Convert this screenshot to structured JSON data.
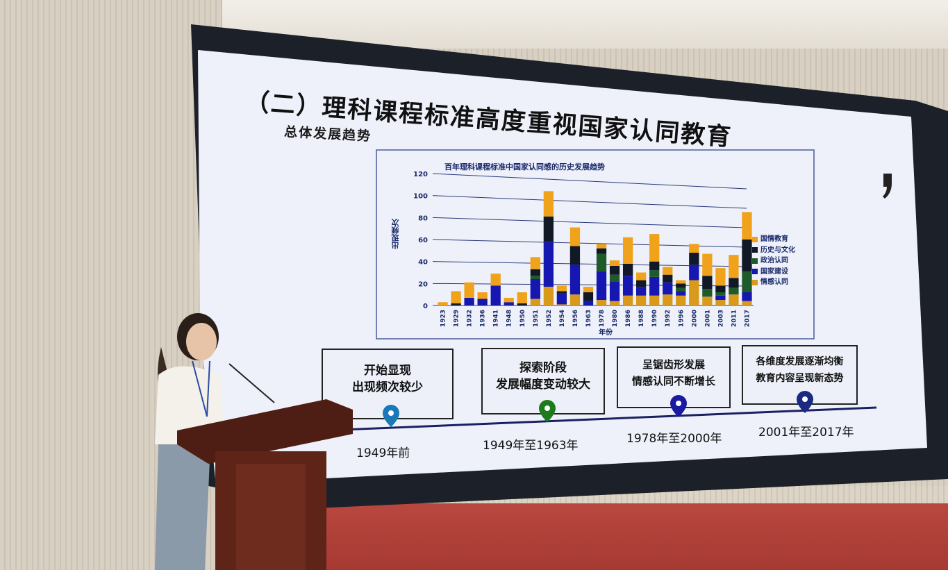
{
  "slide": {
    "title": "（二）理科课程标准高度重视国家认同教育",
    "subtitle": "总体发展趋势",
    "timeline": [
      {
        "text_line1": "开始显现",
        "text_line2": "出现频次较少",
        "period": "1949年前",
        "pin_color": "#1a78b8"
      },
      {
        "text_line1": "探索阶段",
        "text_line2": "发展幅度变动较大",
        "period": "1949年至1963年",
        "pin_color": "#1d7a1d"
      },
      {
        "text_line1": "呈锯齿形发展",
        "text_line2": "情感认同不断增长",
        "period": "1978年至2000年",
        "pin_color": "#1a1aa0"
      },
      {
        "text_line1": "各维度发展逐渐均衡",
        "text_line2": "教育内容呈现新态势",
        "period": "2001年至2017年",
        "pin_color": "#1a2a80"
      }
    ]
  },
  "chart_data": {
    "type": "bar",
    "stacked": true,
    "title": "百年理科课程标准中国家认同感的历史发展趋势",
    "xlabel": "年份",
    "ylabel": "出现频次",
    "ylim": [
      0,
      120
    ],
    "yticks": [
      "0",
      "20",
      "40",
      "60",
      "80",
      "100",
      "120"
    ],
    "grid": true,
    "legend_position": "right",
    "categories": [
      "1923",
      "1929",
      "1932",
      "1936",
      "1941",
      "1948",
      "1950",
      "1951",
      "1952",
      "1954",
      "1956",
      "1963",
      "1978",
      "1980",
      "1986",
      "1988",
      "1990",
      "1992",
      "1996",
      "2000",
      "2001",
      "2003",
      "2011",
      "2017"
    ],
    "series": [
      {
        "name": "情感认同",
        "color": "#d99a1c",
        "values": [
          0,
          0,
          0,
          0,
          0,
          0,
          0,
          6,
          17,
          1,
          10,
          0,
          5,
          4,
          9,
          9,
          9,
          10,
          9,
          23,
          8,
          5,
          10,
          4
        ]
      },
      {
        "name": "国家建设",
        "color": "#1616b0",
        "values": [
          0,
          0,
          7,
          6,
          18,
          3,
          0,
          18,
          41,
          10,
          27,
          4,
          26,
          18,
          18,
          8,
          17,
          11,
          4,
          14,
          0,
          4,
          0,
          8
        ]
      },
      {
        "name": "政治认同",
        "color": "#1e5a2a",
        "values": [
          0,
          0,
          0,
          0,
          0,
          0,
          0,
          3,
          0,
          0,
          0,
          0,
          16,
          6,
          0,
          0,
          6,
          0,
          3,
          0,
          7,
          3,
          6,
          19
        ]
      },
      {
        "name": "历史与文化",
        "color": "#111826",
        "values": [
          0,
          2,
          0,
          0,
          0,
          0,
          2,
          6,
          23,
          2,
          17,
          8,
          5,
          8,
          11,
          6,
          8,
          7,
          4,
          11,
          12,
          6,
          9,
          29
        ]
      },
      {
        "name": "国情教育",
        "color": "#f0a21a",
        "values": [
          3,
          11,
          14,
          6,
          11,
          4,
          10,
          11,
          23,
          5,
          17,
          5,
          4,
          5,
          24,
          7,
          25,
          7,
          3,
          8,
          20,
          16,
          21,
          25
        ]
      }
    ]
  },
  "colors": {
    "screen_bezel": "#1c2028",
    "slide_bg": "#eef1fa",
    "carpet": "#b0413a"
  }
}
